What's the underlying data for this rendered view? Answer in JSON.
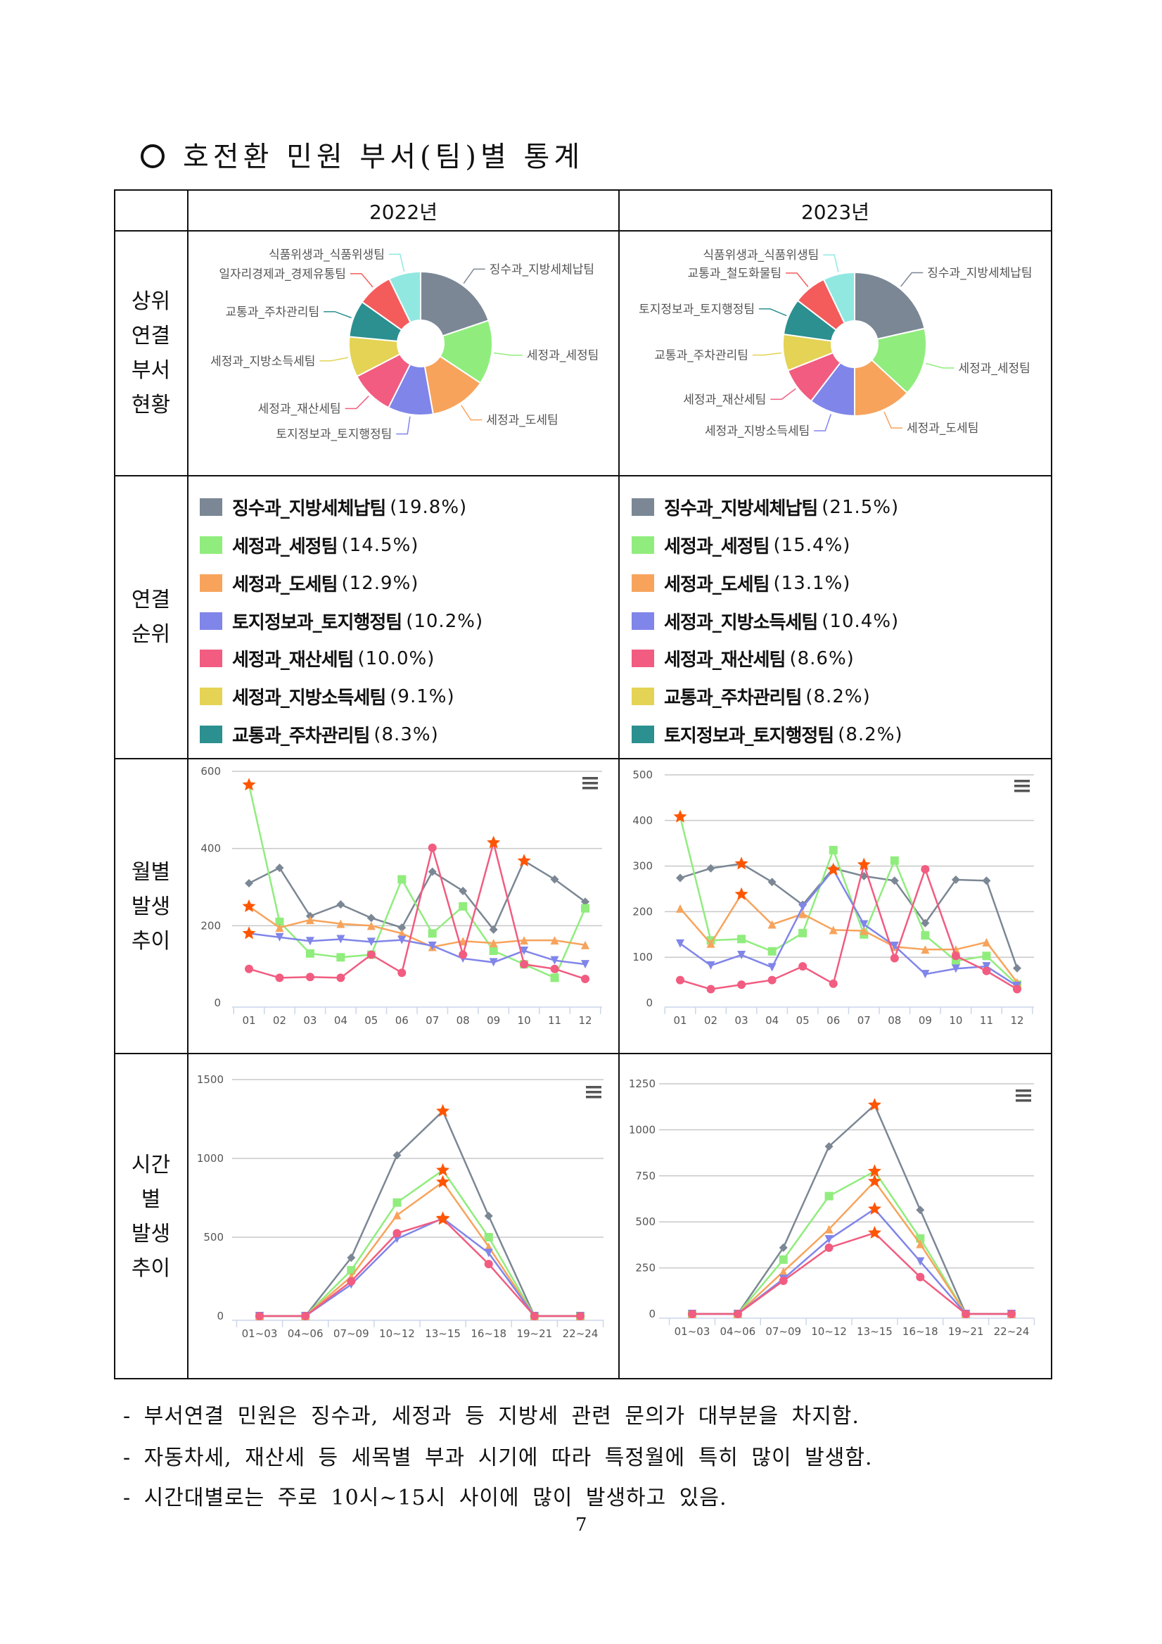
{
  "title": "호전환 민원 부서(팀)별 통계",
  "table": {
    "col_headers": [
      "2022년",
      "2023년"
    ],
    "row_labels": {
      "top_depts": [
        "상위",
        "연결",
        "부서",
        "현황"
      ],
      "ranking": [
        "연결",
        "순위"
      ],
      "monthly": [
        "월별",
        "발생",
        "추이"
      ],
      "hourly": [
        "시간",
        "별",
        "발생",
        "추이"
      ]
    },
    "ranking_2022": [
      {
        "name": "징수과_지방세체납팀",
        "pct": "(19.8%)",
        "color": "#7b8794"
      },
      {
        "name": "세정과_세정팀",
        "pct": "(14.5%)",
        "color": "#90ed7d"
      },
      {
        "name": "세정과_도세팀",
        "pct": "(12.9%)",
        "color": "#f7a35c"
      },
      {
        "name": "토지정보과_토지행정팀",
        "pct": "(10.2%)",
        "color": "#8085e9"
      },
      {
        "name": "세정과_재산세팀",
        "pct": "(10.0%)",
        "color": "#f15c80"
      },
      {
        "name": "세정과_지방소득세팀",
        "pct": "(9.1%)",
        "color": "#e4d354"
      },
      {
        "name": "교통과_주차관리팀",
        "pct": "(8.3%)",
        "color": "#2b908f"
      }
    ],
    "ranking_2023": [
      {
        "name": "징수과_지방세체납팀",
        "pct": "(21.5%)",
        "color": "#7b8794"
      },
      {
        "name": "세정과_세정팀",
        "pct": "(15.4%)",
        "color": "#90ed7d"
      },
      {
        "name": "세정과_도세팀",
        "pct": "(13.1%)",
        "color": "#f7a35c"
      },
      {
        "name": "세정과_지방소득세팀",
        "pct": "(10.4%)",
        "color": "#8085e9"
      },
      {
        "name": "세정과_재산세팀",
        "pct": "(8.6%)",
        "color": "#f15c80"
      },
      {
        "name": "교통과_주차관리팀",
        "pct": "(8.2%)",
        "color": "#e4d354"
      },
      {
        "name": "토지정보과_토지행정팀",
        "pct": "(8.2%)",
        "color": "#2b908f"
      }
    ]
  },
  "colors": {
    "star": "#ff5500",
    "grid": "#c8c8c8",
    "axis_text": "#555555"
  },
  "chart_data": [
    {
      "id": "pie2022",
      "type": "pie",
      "title": "2022년 상위 연결 부서",
      "labels": [
        "징수과_지방세체납팀",
        "세정과_세정팀",
        "세정과_도세팀",
        "토지정보과_토지행정팀",
        "세정과_재산세팀",
        "세정과_지방소득세팀",
        "교통과_주차관리팀",
        "일자리경제과_경제유통팀",
        "식품위생과_식품위생팀"
      ],
      "values": [
        19.8,
        14.5,
        12.9,
        10.2,
        10.0,
        9.1,
        8.3,
        8.0,
        7.2
      ],
      "colors": [
        "#7b8794",
        "#90ed7d",
        "#f7a35c",
        "#8085e9",
        "#f15c80",
        "#e4d354",
        "#2b908f",
        "#f45b5b",
        "#91e8e1"
      ]
    },
    {
      "id": "pie2023",
      "type": "pie",
      "title": "2023년 상위 연결 부서",
      "labels": [
        "징수과_지방세체납팀",
        "세정과_세정팀",
        "세정과_도세팀",
        "세정과_지방소득세팀",
        "세정과_재산세팀",
        "교통과_주차관리팀",
        "토지정보과_토지행정팀",
        "교통과_철도화물팀",
        "식품위생과_식품위생팀"
      ],
      "values": [
        21.5,
        15.4,
        13.1,
        10.4,
        8.6,
        8.2,
        8.2,
        7.5,
        7.1
      ],
      "colors": [
        "#7b8794",
        "#90ed7d",
        "#f7a35c",
        "#8085e9",
        "#f15c80",
        "#e4d354",
        "#2b908f",
        "#f45b5b",
        "#91e8e1"
      ]
    },
    {
      "id": "month2022",
      "type": "line",
      "title": "2022년 월별 발생 추이",
      "categories": [
        "01",
        "02",
        "03",
        "04",
        "05",
        "06",
        "07",
        "08",
        "09",
        "10",
        "11",
        "12"
      ],
      "yticks": [
        0,
        200,
        400,
        600
      ],
      "ylim": [
        0,
        600
      ],
      "series": [
        {
          "name": "징수과_지방세체납팀",
          "color": "#7b8794",
          "marker": "diamond",
          "values": [
            310,
            350,
            225,
            255,
            220,
            195,
            340,
            290,
            190,
            368,
            320,
            262
          ]
        },
        {
          "name": "세정과_세정팀",
          "color": "#90ed7d",
          "marker": "square",
          "values": [
            565,
            210,
            128,
            118,
            125,
            320,
            180,
            250,
            135,
            100,
            65,
            245
          ]
        },
        {
          "name": "세정과_도세팀",
          "color": "#f7a35c",
          "marker": "triangle",
          "values": [
            250,
            195,
            215,
            205,
            200,
            180,
            145,
            160,
            155,
            162,
            162,
            150
          ]
        },
        {
          "name": "토지정보과_토지행정팀",
          "color": "#8085e9",
          "marker": "triangle-down",
          "values": [
            180,
            170,
            160,
            165,
            158,
            163,
            148,
            115,
            105,
            135,
            110,
            100
          ]
        },
        {
          "name": "세정과_재산세팀",
          "color": "#f15c80",
          "marker": "circle",
          "values": [
            88,
            65,
            67,
            65,
            125,
            78,
            402,
            125,
            415,
            100,
            88,
            62
          ]
        }
      ]
    },
    {
      "id": "month2023",
      "type": "line",
      "title": "2023년 월별 발생 추이",
      "categories": [
        "01",
        "02",
        "03",
        "04",
        "05",
        "06",
        "07",
        "08",
        "09",
        "10",
        "11",
        "12"
      ],
      "yticks": [
        0,
        100,
        200,
        300,
        400,
        500
      ],
      "ylim": [
        0,
        500
      ],
      "series": [
        {
          "name": "징수과_지방세체납팀",
          "color": "#7b8794",
          "marker": "diamond",
          "values": [
            274,
            295,
            305,
            265,
            215,
            295,
            278,
            268,
            175,
            270,
            268,
            76
          ]
        },
        {
          "name": "세정과_세정팀",
          "color": "#90ed7d",
          "marker": "square",
          "values": [
            408,
            137,
            140,
            113,
            153,
            335,
            150,
            312,
            148,
            92,
            103,
            40
          ]
        },
        {
          "name": "세정과_도세팀",
          "color": "#f7a35c",
          "marker": "triangle",
          "values": [
            207,
            130,
            238,
            172,
            195,
            160,
            158,
            123,
            117,
            117,
            133,
            45
          ]
        },
        {
          "name": "세정과_지방소득세팀",
          "color": "#8085e9",
          "marker": "triangle-down",
          "values": [
            130,
            82,
            105,
            78,
            210,
            292,
            172,
            125,
            63,
            75,
            80,
            37
          ]
        },
        {
          "name": "세정과_재산세팀",
          "color": "#f15c80",
          "marker": "circle",
          "values": [
            50,
            30,
            40,
            50,
            80,
            42,
            303,
            98,
            293,
            103,
            70,
            30
          ]
        }
      ]
    },
    {
      "id": "hour2022",
      "type": "line",
      "title": "2022년 시간별 발생 추이",
      "categories": [
        "01~03",
        "04~06",
        "07~09",
        "10~12",
        "13~15",
        "16~18",
        "19~21",
        "22~24"
      ],
      "yticks": [
        0,
        500,
        1000,
        1500
      ],
      "ylim": [
        0,
        1500
      ],
      "series": [
        {
          "name": "징수과_지방세체납팀",
          "color": "#7b8794",
          "marker": "diamond",
          "values": [
            0,
            0,
            370,
            1020,
            1300,
            635,
            0,
            0
          ]
        },
        {
          "name": "세정과_세정팀",
          "color": "#90ed7d",
          "marker": "square",
          "values": [
            0,
            0,
            290,
            720,
            925,
            500,
            0,
            0
          ]
        },
        {
          "name": "세정과_도세팀",
          "color": "#f7a35c",
          "marker": "triangle",
          "values": [
            0,
            0,
            250,
            640,
            850,
            440,
            0,
            0
          ]
        },
        {
          "name": "토지정보과_토지행정팀",
          "color": "#8085e9",
          "marker": "triangle-down",
          "values": [
            0,
            0,
            200,
            490,
            620,
            400,
            0,
            0
          ]
        },
        {
          "name": "세정과_재산세팀",
          "color": "#f15c80",
          "marker": "circle",
          "values": [
            0,
            0,
            220,
            525,
            615,
            330,
            0,
            0
          ]
        }
      ]
    },
    {
      "id": "hour2023",
      "type": "line",
      "title": "2023년 시간별 발생 추이",
      "categories": [
        "01~03",
        "04~06",
        "07~09",
        "10~12",
        "13~15",
        "16~18",
        "19~21",
        "22~24"
      ],
      "yticks": [
        0,
        250,
        500,
        750,
        1000,
        1250
      ],
      "ylim": [
        0,
        1250
      ],
      "series": [
        {
          "name": "징수과_지방세체납팀",
          "color": "#7b8794",
          "marker": "diamond",
          "values": [
            0,
            0,
            360,
            910,
            1135,
            565,
            0,
            0
          ]
        },
        {
          "name": "세정과_세정팀",
          "color": "#90ed7d",
          "marker": "square",
          "values": [
            0,
            0,
            295,
            640,
            775,
            410,
            0,
            0
          ]
        },
        {
          "name": "세정과_도세팀",
          "color": "#f7a35c",
          "marker": "triangle",
          "values": [
            0,
            0,
            230,
            460,
            720,
            380,
            0,
            0
          ]
        },
        {
          "name": "세정과_지방소득세팀",
          "color": "#8085e9",
          "marker": "triangle-down",
          "values": [
            0,
            0,
            190,
            405,
            570,
            285,
            0,
            0
          ]
        },
        {
          "name": "세정과_재산세팀",
          "color": "#f15c80",
          "marker": "circle",
          "values": [
            0,
            0,
            180,
            360,
            440,
            200,
            0,
            0
          ]
        }
      ]
    }
  ],
  "bullets": [
    "- 부서연결 민원은 징수과, 세정과 등 지방세 관련 문의가 대부분을 차지함.",
    "- 자동차세, 재산세 등 세목별 부과 시기에 따라 특정월에 특히 많이 발생함.",
    "- 시간대별로는 주로 10시~15시 사이에 많이 발생하고 있음."
  ],
  "page_number": "7"
}
